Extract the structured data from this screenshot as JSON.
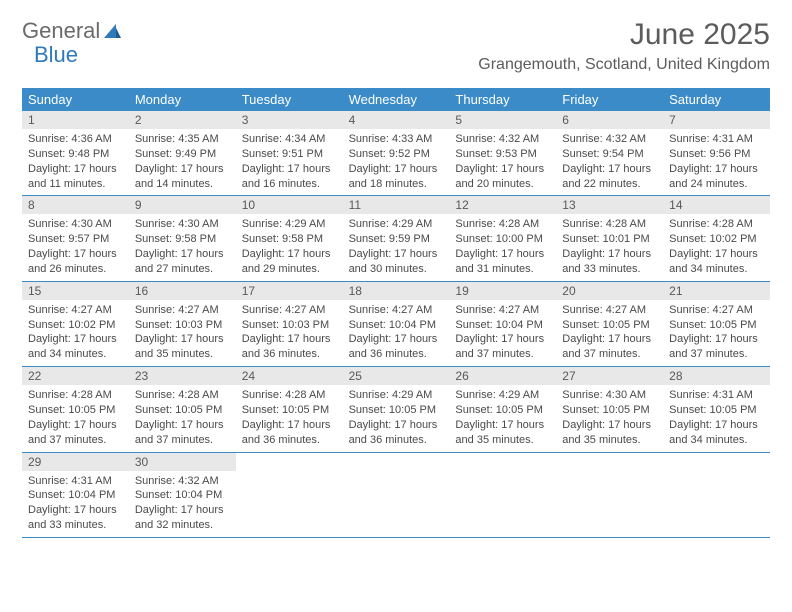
{
  "logo": {
    "part1": "General",
    "part2": "Blue"
  },
  "title": "June 2025",
  "location": "Grangemouth, Scotland, United Kingdom",
  "colors": {
    "header_bg": "#3b8bc8",
    "header_text": "#ffffff",
    "daynum_bg": "#e8e8e8",
    "border": "#3b8bc8",
    "text": "#4a4a4a",
    "title": "#5c5c5c",
    "logo_gray": "#6b6b6b",
    "logo_blue": "#2f79b9"
  },
  "day_names": [
    "Sunday",
    "Monday",
    "Tuesday",
    "Wednesday",
    "Thursday",
    "Friday",
    "Saturday"
  ],
  "weeks": [
    [
      {
        "day": "1",
        "sunrise": "Sunrise: 4:36 AM",
        "sunset": "Sunset: 9:48 PM",
        "daylight": "Daylight: 17 hours and 11 minutes."
      },
      {
        "day": "2",
        "sunrise": "Sunrise: 4:35 AM",
        "sunset": "Sunset: 9:49 PM",
        "daylight": "Daylight: 17 hours and 14 minutes."
      },
      {
        "day": "3",
        "sunrise": "Sunrise: 4:34 AM",
        "sunset": "Sunset: 9:51 PM",
        "daylight": "Daylight: 17 hours and 16 minutes."
      },
      {
        "day": "4",
        "sunrise": "Sunrise: 4:33 AM",
        "sunset": "Sunset: 9:52 PM",
        "daylight": "Daylight: 17 hours and 18 minutes."
      },
      {
        "day": "5",
        "sunrise": "Sunrise: 4:32 AM",
        "sunset": "Sunset: 9:53 PM",
        "daylight": "Daylight: 17 hours and 20 minutes."
      },
      {
        "day": "6",
        "sunrise": "Sunrise: 4:32 AM",
        "sunset": "Sunset: 9:54 PM",
        "daylight": "Daylight: 17 hours and 22 minutes."
      },
      {
        "day": "7",
        "sunrise": "Sunrise: 4:31 AM",
        "sunset": "Sunset: 9:56 PM",
        "daylight": "Daylight: 17 hours and 24 minutes."
      }
    ],
    [
      {
        "day": "8",
        "sunrise": "Sunrise: 4:30 AM",
        "sunset": "Sunset: 9:57 PM",
        "daylight": "Daylight: 17 hours and 26 minutes."
      },
      {
        "day": "9",
        "sunrise": "Sunrise: 4:30 AM",
        "sunset": "Sunset: 9:58 PM",
        "daylight": "Daylight: 17 hours and 27 minutes."
      },
      {
        "day": "10",
        "sunrise": "Sunrise: 4:29 AM",
        "sunset": "Sunset: 9:58 PM",
        "daylight": "Daylight: 17 hours and 29 minutes."
      },
      {
        "day": "11",
        "sunrise": "Sunrise: 4:29 AM",
        "sunset": "Sunset: 9:59 PM",
        "daylight": "Daylight: 17 hours and 30 minutes."
      },
      {
        "day": "12",
        "sunrise": "Sunrise: 4:28 AM",
        "sunset": "Sunset: 10:00 PM",
        "daylight": "Daylight: 17 hours and 31 minutes."
      },
      {
        "day": "13",
        "sunrise": "Sunrise: 4:28 AM",
        "sunset": "Sunset: 10:01 PM",
        "daylight": "Daylight: 17 hours and 33 minutes."
      },
      {
        "day": "14",
        "sunrise": "Sunrise: 4:28 AM",
        "sunset": "Sunset: 10:02 PM",
        "daylight": "Daylight: 17 hours and 34 minutes."
      }
    ],
    [
      {
        "day": "15",
        "sunrise": "Sunrise: 4:27 AM",
        "sunset": "Sunset: 10:02 PM",
        "daylight": "Daylight: 17 hours and 34 minutes."
      },
      {
        "day": "16",
        "sunrise": "Sunrise: 4:27 AM",
        "sunset": "Sunset: 10:03 PM",
        "daylight": "Daylight: 17 hours and 35 minutes."
      },
      {
        "day": "17",
        "sunrise": "Sunrise: 4:27 AM",
        "sunset": "Sunset: 10:03 PM",
        "daylight": "Daylight: 17 hours and 36 minutes."
      },
      {
        "day": "18",
        "sunrise": "Sunrise: 4:27 AM",
        "sunset": "Sunset: 10:04 PM",
        "daylight": "Daylight: 17 hours and 36 minutes."
      },
      {
        "day": "19",
        "sunrise": "Sunrise: 4:27 AM",
        "sunset": "Sunset: 10:04 PM",
        "daylight": "Daylight: 17 hours and 37 minutes."
      },
      {
        "day": "20",
        "sunrise": "Sunrise: 4:27 AM",
        "sunset": "Sunset: 10:05 PM",
        "daylight": "Daylight: 17 hours and 37 minutes."
      },
      {
        "day": "21",
        "sunrise": "Sunrise: 4:27 AM",
        "sunset": "Sunset: 10:05 PM",
        "daylight": "Daylight: 17 hours and 37 minutes."
      }
    ],
    [
      {
        "day": "22",
        "sunrise": "Sunrise: 4:28 AM",
        "sunset": "Sunset: 10:05 PM",
        "daylight": "Daylight: 17 hours and 37 minutes."
      },
      {
        "day": "23",
        "sunrise": "Sunrise: 4:28 AM",
        "sunset": "Sunset: 10:05 PM",
        "daylight": "Daylight: 17 hours and 37 minutes."
      },
      {
        "day": "24",
        "sunrise": "Sunrise: 4:28 AM",
        "sunset": "Sunset: 10:05 PM",
        "daylight": "Daylight: 17 hours and 36 minutes."
      },
      {
        "day": "25",
        "sunrise": "Sunrise: 4:29 AM",
        "sunset": "Sunset: 10:05 PM",
        "daylight": "Daylight: 17 hours and 36 minutes."
      },
      {
        "day": "26",
        "sunrise": "Sunrise: 4:29 AM",
        "sunset": "Sunset: 10:05 PM",
        "daylight": "Daylight: 17 hours and 35 minutes."
      },
      {
        "day": "27",
        "sunrise": "Sunrise: 4:30 AM",
        "sunset": "Sunset: 10:05 PM",
        "daylight": "Daylight: 17 hours and 35 minutes."
      },
      {
        "day": "28",
        "sunrise": "Sunrise: 4:31 AM",
        "sunset": "Sunset: 10:05 PM",
        "daylight": "Daylight: 17 hours and 34 minutes."
      }
    ],
    [
      {
        "day": "29",
        "sunrise": "Sunrise: 4:31 AM",
        "sunset": "Sunset: 10:04 PM",
        "daylight": "Daylight: 17 hours and 33 minutes."
      },
      {
        "day": "30",
        "sunrise": "Sunrise: 4:32 AM",
        "sunset": "Sunset: 10:04 PM",
        "daylight": "Daylight: 17 hours and 32 minutes."
      },
      {
        "day": "",
        "sunrise": "",
        "sunset": "",
        "daylight": ""
      },
      {
        "day": "",
        "sunrise": "",
        "sunset": "",
        "daylight": ""
      },
      {
        "day": "",
        "sunrise": "",
        "sunset": "",
        "daylight": ""
      },
      {
        "day": "",
        "sunrise": "",
        "sunset": "",
        "daylight": ""
      },
      {
        "day": "",
        "sunrise": "",
        "sunset": "",
        "daylight": ""
      }
    ]
  ]
}
